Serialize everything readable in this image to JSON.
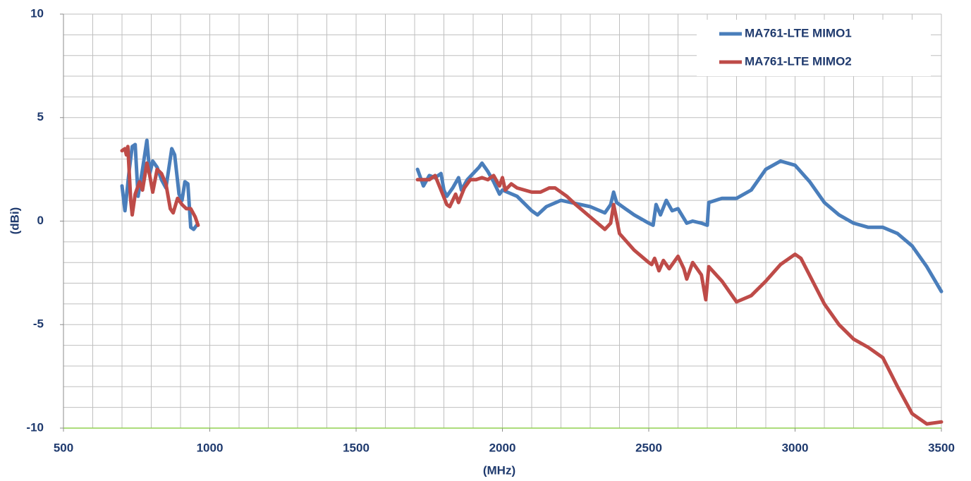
{
  "chart_data": {
    "type": "line",
    "xlabel": "(MHz)",
    "ylabel": "(dBi)",
    "xlim": [
      500,
      3500
    ],
    "xticks": [
      500,
      1000,
      1500,
      2000,
      2500,
      3000,
      3500
    ],
    "ylim": [
      -10,
      10
    ],
    "yticks": [
      -10,
      -5,
      0,
      5,
      10
    ],
    "xgrid": [
      500,
      600,
      700,
      800,
      900,
      1000,
      1100,
      1200,
      1300,
      1400,
      1500,
      1600,
      1700,
      1800,
      1900,
      2000,
      2100,
      2200,
      2300,
      2400,
      2500,
      2600,
      2700,
      2800,
      2900,
      3000,
      3100,
      3200,
      3300,
      3400,
      3500
    ],
    "ygrid": [
      -10,
      -9,
      -8,
      -7,
      -6,
      -5,
      -4,
      -3,
      -2,
      -1,
      0,
      1,
      2,
      3,
      4,
      5,
      6,
      7,
      8,
      9,
      10
    ],
    "grid": true,
    "legend": "top-right",
    "series": [
      {
        "name": "MA761-LTE MIMO1",
        "color": "#4a7ebb",
        "x": [
          700,
          710,
          725,
          735,
          745,
          755,
          770,
          785,
          795,
          805,
          820,
          835,
          850,
          870,
          880,
          895,
          905,
          915,
          925,
          935,
          945,
          955,
          null,
          1710,
          1730,
          1750,
          1770,
          1790,
          1800,
          1810,
          1830,
          1850,
          1860,
          1880,
          1900,
          1920,
          1930,
          1950,
          1970,
          1990,
          2000,
          2050,
          2100,
          2120,
          2150,
          2200,
          2300,
          2350,
          2370,
          2380,
          2390,
          2420,
          2450,
          2500,
          2515,
          2525,
          2540,
          2560,
          2580,
          2600,
          2630,
          2650,
          2680,
          2700,
          2705,
          2750,
          2800,
          2850,
          2900,
          2950,
          3000,
          3050,
          3100,
          3150,
          3200,
          3250,
          3300,
          3350,
          3400,
          3450,
          3500
        ],
        "values": [
          1.7,
          0.5,
          2.5,
          3.6,
          3.7,
          1.2,
          2.5,
          3.9,
          2.3,
          2.9,
          2.6,
          2.0,
          1.6,
          3.5,
          3.2,
          1.3,
          1.0,
          1.9,
          1.8,
          -0.3,
          -0.4,
          -0.2,
          null,
          2.5,
          1.7,
          2.2,
          2.1,
          2.3,
          1.5,
          1.2,
          1.6,
          2.1,
          1.5,
          2.0,
          2.3,
          2.6,
          2.8,
          2.4,
          1.9,
          1.3,
          1.5,
          1.2,
          0.5,
          0.3,
          0.7,
          1.0,
          0.7,
          0.4,
          0.8,
          1.4,
          0.9,
          0.6,
          0.3,
          -0.1,
          -0.2,
          0.8,
          0.3,
          1.0,
          0.5,
          0.6,
          -0.1,
          0.0,
          -0.1,
          -0.2,
          0.9,
          1.1,
          1.1,
          1.5,
          2.5,
          2.9,
          2.7,
          1.9,
          0.9,
          0.3,
          -0.1,
          -0.3,
          -0.3,
          -0.6,
          -1.2,
          -2.2,
          -3.4
        ]
      },
      {
        "name": "MA761-LTE MIMO2",
        "color": "#be4b48",
        "x": [
          700,
          710,
          715,
          720,
          730,
          735,
          745,
          760,
          770,
          785,
          795,
          805,
          820,
          835,
          850,
          865,
          875,
          890,
          905,
          920,
          935,
          950,
          960,
          null,
          1710,
          1730,
          1750,
          1770,
          1790,
          1810,
          1820,
          1840,
          1850,
          1870,
          1890,
          1910,
          1930,
          1950,
          1970,
          1990,
          2000,
          2010,
          2030,
          2050,
          2100,
          2130,
          2160,
          2180,
          2220,
          2250,
          2300,
          2350,
          2370,
          2380,
          2390,
          2400,
          2450,
          2500,
          2510,
          2520,
          2535,
          2550,
          2570,
          2600,
          2620,
          2630,
          2650,
          2680,
          2695,
          2705,
          2750,
          2800,
          2850,
          2900,
          2950,
          3000,
          3020,
          3060,
          3100,
          3150,
          3200,
          3250,
          3300,
          3350,
          3400,
          3450,
          3500
        ],
        "values": [
          3.4,
          3.5,
          3.2,
          3.6,
          1.0,
          0.3,
          1.3,
          1.9,
          1.5,
          2.8,
          2.2,
          1.4,
          2.5,
          2.3,
          1.8,
          0.6,
          0.4,
          1.1,
          0.8,
          0.6,
          0.6,
          0.2,
          -0.2,
          null,
          2.0,
          2.0,
          2.0,
          2.2,
          1.5,
          0.8,
          0.7,
          1.3,
          0.9,
          1.6,
          2.0,
          2.0,
          2.1,
          2.0,
          2.2,
          1.7,
          2.1,
          1.5,
          1.8,
          1.6,
          1.4,
          1.4,
          1.6,
          1.6,
          1.2,
          0.8,
          0.2,
          -0.4,
          -0.1,
          0.8,
          0.1,
          -0.6,
          -1.4,
          -2.0,
          -2.1,
          -1.8,
          -2.4,
          -1.9,
          -2.3,
          -1.7,
          -2.3,
          -2.8,
          -2.0,
          -2.6,
          -3.8,
          -2.2,
          -2.9,
          -3.9,
          -3.6,
          -2.9,
          -2.1,
          -1.6,
          -1.8,
          -2.9,
          -4.0,
          -5.0,
          -5.7,
          -6.1,
          -6.6,
          -8.0,
          -9.3,
          -9.8,
          -9.7
        ]
      }
    ]
  }
}
